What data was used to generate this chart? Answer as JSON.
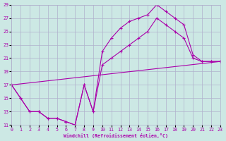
{
  "xlabel": "Windchill (Refroidissement éolien,°C)",
  "xlim": [
    0,
    23
  ],
  "ylim": [
    11,
    29
  ],
  "xticks": [
    0,
    1,
    2,
    3,
    4,
    5,
    6,
    7,
    8,
    9,
    10,
    11,
    12,
    13,
    14,
    15,
    16,
    17,
    18,
    19,
    20,
    21,
    22,
    23
  ],
  "yticks": [
    11,
    13,
    15,
    17,
    19,
    21,
    23,
    25,
    27,
    29
  ],
  "bg_color": "#cce8e4",
  "grid_color": "#b0b0cc",
  "line_color": "#aa00aa",
  "line1_x": [
    0,
    1,
    2,
    3,
    4,
    5,
    6,
    7,
    8,
    9,
    10,
    11,
    12,
    13,
    14,
    15,
    16,
    17,
    18,
    19,
    20,
    21,
    22,
    23
  ],
  "line1_y": [
    17,
    15,
    13,
    13,
    12,
    12,
    11.5,
    11,
    17,
    13,
    22,
    24,
    25.5,
    26.5,
    27,
    27.5,
    29,
    28,
    27,
    26,
    21.5,
    20.5,
    20.5,
    20.5
  ],
  "line2_x": [
    0,
    1,
    2,
    3,
    4,
    5,
    6,
    7,
    8,
    9,
    10,
    11,
    12,
    13,
    14,
    15,
    16,
    17,
    18,
    19,
    20,
    21,
    22,
    23
  ],
  "line2_y": [
    17,
    15,
    13,
    13,
    12,
    12,
    11.5,
    11,
    17,
    13,
    20,
    21,
    22,
    23,
    24,
    25,
    27,
    26,
    25,
    24,
    21,
    20.5,
    20.5,
    20.5
  ],
  "line3_x": [
    0,
    23
  ],
  "line3_y": [
    17,
    20.5
  ]
}
